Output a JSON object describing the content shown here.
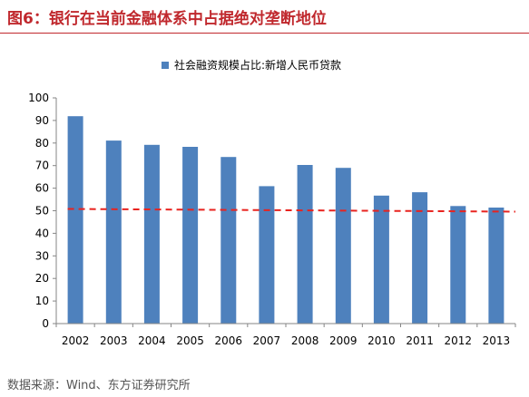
{
  "header": {
    "title": "图6：银行在当前金融体系中占据绝对垄断地位"
  },
  "footer": {
    "source": "数据来源：Wind、东方证券研究所"
  },
  "chart_data": {
    "type": "bar",
    "categories": [
      "2002",
      "2003",
      "2004",
      "2005",
      "2006",
      "2007",
      "2008",
      "2009",
      "2010",
      "2011",
      "2012",
      "2013"
    ],
    "series": [
      {
        "name": "社会融资规模占比:新增人民币贷款",
        "color": "#4e81bd",
        "values": [
          91.9,
          81.1,
          79.2,
          78.3,
          73.8,
          60.9,
          70.3,
          69.0,
          56.7,
          58.2,
          52.1,
          51.4
        ]
      }
    ],
    "trendline": {
      "style": "dashed",
      "color": "#e8231f",
      "start": 50.8,
      "end": 49.6
    },
    "title": "",
    "xlabel": "",
    "ylabel": "",
    "ylim": [
      0,
      100
    ],
    "yticks": [
      0,
      10,
      20,
      30,
      40,
      50,
      60,
      70,
      80,
      90,
      100
    ],
    "grid": false,
    "legend": "top"
  }
}
